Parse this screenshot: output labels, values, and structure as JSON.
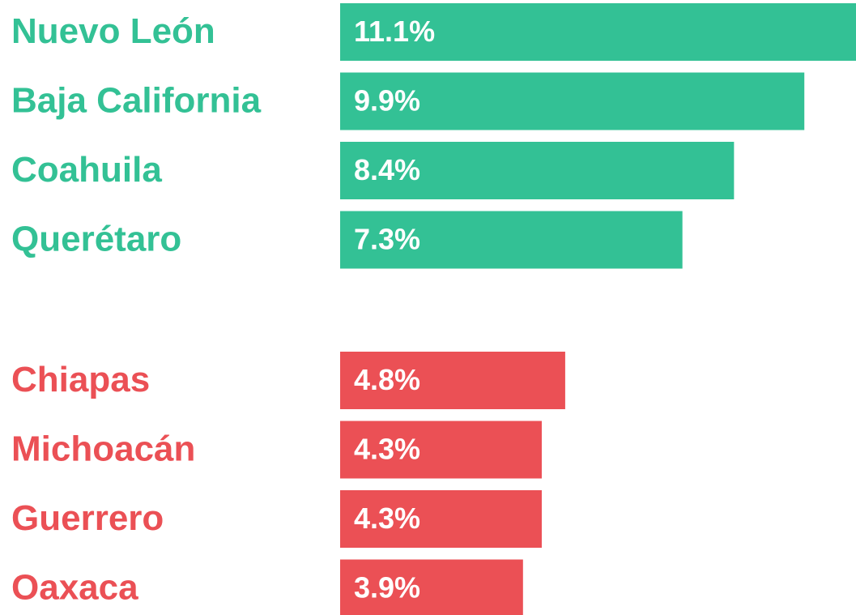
{
  "chart_data": {
    "type": "bar",
    "orientation": "horizontal",
    "groups": [
      {
        "color": "#33c195",
        "categories": [
          "Nuevo León",
          "Baja California",
          "Coahuila",
          "Querétaro"
        ],
        "values": [
          11.1,
          9.9,
          8.4,
          7.3
        ],
        "value_labels": [
          "11.1%",
          "9.9%",
          "8.4%",
          "7.3%"
        ]
      },
      {
        "color": "#eb5055",
        "categories": [
          "Chiapas",
          "Michoacán",
          "Guerrero",
          "Oaxaca"
        ],
        "values": [
          4.8,
          4.3,
          4.3,
          3.9
        ],
        "value_labels": [
          "4.8%",
          "4.3%",
          "4.3%",
          "3.9%"
        ]
      }
    ]
  }
}
